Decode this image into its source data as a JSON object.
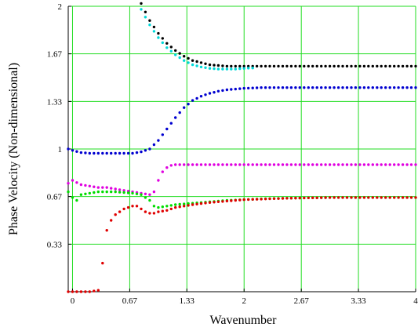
{
  "chart_data": {
    "type": "scatter",
    "title": "",
    "xlabel": "Wavenumber",
    "ylabel": "Phase Velocity (Non-dimensional)",
    "xlim": [
      -0.05,
      4
    ],
    "ylim": [
      0,
      2
    ],
    "grid": true,
    "grid_color": "#22dd22",
    "x_ticks": [
      {
        "value": 0,
        "label": "0"
      },
      {
        "value": 0.667,
        "label": "0.67"
      },
      {
        "value": 1.333,
        "label": "1.33"
      },
      {
        "value": 2,
        "label": "2"
      },
      {
        "value": 2.667,
        "label": "2.67"
      },
      {
        "value": 3.333,
        "label": "3.33"
      },
      {
        "value": 4,
        "label": "4"
      }
    ],
    "y_ticks": [
      {
        "value": 0.333,
        "label": "0.33"
      },
      {
        "value": 0.667,
        "label": "0.67"
      },
      {
        "value": 1,
        "label": "1"
      },
      {
        "value": 1.333,
        "label": "1.33"
      },
      {
        "value": 1.667,
        "label": "1.67"
      },
      {
        "value": 2,
        "label": "2"
      }
    ],
    "series": [
      {
        "color": "#000000",
        "x": [
          0.8,
          0.9,
          1.0,
          1.1,
          1.2,
          1.3,
          1.4,
          1.6,
          1.8,
          2.0,
          2.5,
          3.0,
          3.5,
          4.0
        ],
        "y": [
          2.02,
          1.9,
          1.81,
          1.74,
          1.69,
          1.65,
          1.62,
          1.59,
          1.58,
          1.58,
          1.58,
          1.58,
          1.58,
          1.58
        ]
      },
      {
        "color": "#00d8d8",
        "x": [
          0.78,
          0.9,
          1.0,
          1.1,
          1.2,
          1.3,
          1.4,
          1.5,
          1.6,
          1.7,
          1.8,
          1.9,
          2.0,
          2.2,
          2.5,
          3.0,
          3.5,
          4.0
        ],
        "y": [
          2.0,
          1.87,
          1.78,
          1.71,
          1.66,
          1.62,
          1.59,
          1.575,
          1.565,
          1.56,
          1.56,
          1.56,
          1.565,
          1.57,
          1.575,
          1.575,
          1.575,
          1.575
        ],
        "range": [
          0.78,
          2.1
        ]
      },
      {
        "color": "#0000d0",
        "x": [
          -0.05,
          0.0,
          0.1,
          0.2,
          0.3,
          0.4,
          0.5,
          0.6,
          0.7,
          0.8,
          0.9,
          1.0,
          1.1,
          1.2,
          1.3,
          1.4,
          1.5,
          1.6,
          1.7,
          1.8,
          1.9,
          2.0,
          2.2,
          2.5,
          3.0,
          3.5,
          4.0
        ],
        "y": [
          1.0,
          0.99,
          0.975,
          0.97,
          0.97,
          0.97,
          0.97,
          0.97,
          0.97,
          0.98,
          1.0,
          1.06,
          1.14,
          1.22,
          1.29,
          1.34,
          1.37,
          1.39,
          1.405,
          1.415,
          1.42,
          1.425,
          1.43,
          1.43,
          1.43,
          1.43,
          1.43
        ]
      },
      {
        "color": "#e000e0",
        "x": [
          -0.05,
          0.0,
          0.1,
          0.2,
          0.3,
          0.4,
          0.5,
          0.6,
          0.7,
          0.8,
          0.9,
          0.95,
          1.0,
          1.05,
          1.1,
          1.15,
          1.2,
          1.3,
          1.5,
          2.0,
          2.5,
          3.0,
          3.5,
          4.0
        ],
        "y": [
          0.76,
          0.78,
          0.75,
          0.74,
          0.73,
          0.73,
          0.72,
          0.71,
          0.7,
          0.69,
          0.68,
          0.7,
          0.78,
          0.84,
          0.87,
          0.885,
          0.89,
          0.89,
          0.89,
          0.89,
          0.89,
          0.89,
          0.89,
          0.89
        ]
      },
      {
        "color": "#00dd00",
        "x": [
          -0.05,
          0.0,
          0.05,
          0.1,
          0.2,
          0.3,
          0.4,
          0.5,
          0.6,
          0.7,
          0.8,
          0.9,
          0.95,
          1.0,
          1.1,
          1.2,
          1.4,
          1.6,
          1.8,
          2.0,
          2.2,
          2.5,
          3.0,
          3.5,
          4.0
        ],
        "y": [
          0.7,
          0.66,
          0.64,
          0.68,
          0.69,
          0.7,
          0.7,
          0.7,
          0.695,
          0.69,
          0.68,
          0.64,
          0.6,
          0.59,
          0.6,
          0.61,
          0.62,
          0.63,
          0.64,
          0.645,
          0.65,
          0.655,
          0.66,
          0.66,
          0.66
        ]
      },
      {
        "color": "#e00000",
        "x": [
          -0.05,
          0.0,
          0.1,
          0.2,
          0.3,
          0.35,
          0.4,
          0.45,
          0.5,
          0.55,
          0.6,
          0.7,
          0.75,
          0.8,
          0.85,
          0.9,
          0.95,
          1.0,
          1.1,
          1.2,
          1.4,
          1.6,
          1.8,
          2.0,
          2.5,
          3.0,
          3.5,
          4.0
        ],
        "y": [
          0.0,
          0.0,
          0.0,
          0.0,
          0.01,
          0.2,
          0.43,
          0.5,
          0.54,
          0.56,
          0.58,
          0.6,
          0.6,
          0.58,
          0.56,
          0.55,
          0.55,
          0.56,
          0.57,
          0.59,
          0.61,
          0.625,
          0.635,
          0.645,
          0.655,
          0.66,
          0.66,
          0.66
        ]
      }
    ]
  }
}
